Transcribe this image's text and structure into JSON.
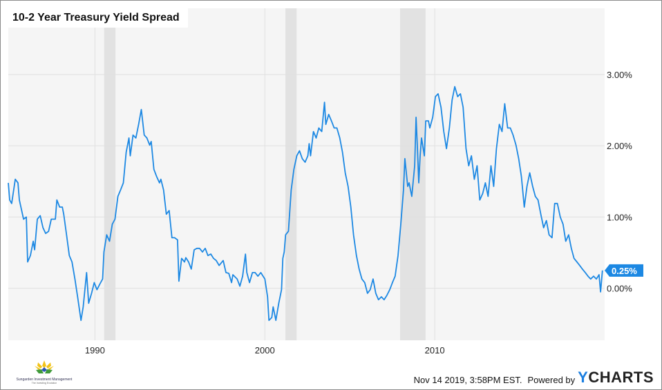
{
  "chart_data": {
    "type": "line",
    "title": "10-2 Year Treasury Yield Spread",
    "xlabel": "",
    "ylabel": "",
    "xlim": [
      1984.9,
      2020.0
    ],
    "ylim": [
      -0.73,
      3.93
    ],
    "x_ticks": [
      {
        "value": 1990,
        "label": "1990"
      },
      {
        "value": 2000,
        "label": "2000"
      },
      {
        "value": 2010,
        "label": "2010"
      }
    ],
    "y_ticks": [
      {
        "value": 0,
        "label": "0.00%"
      },
      {
        "value": 1,
        "label": "1.00%"
      },
      {
        "value": 2,
        "label": "2.00%"
      },
      {
        "value": 3,
        "label": "3.00%"
      }
    ],
    "grid": true,
    "line_color": "#1c88e3",
    "shaded_bands_color": "#e2e2e2",
    "shaded_bands": [
      [
        1990.54,
        1991.21
      ],
      [
        2001.21,
        2001.87
      ],
      [
        2007.96,
        2009.46
      ]
    ],
    "last_value_label": "0.25%",
    "series": [
      {
        "x": [
          1984.9,
          1984.98,
          1985.1,
          1985.31,
          1985.47,
          1985.55,
          1985.8,
          1985.96,
          1986.04,
          1986.2,
          1986.37,
          1986.45,
          1986.61,
          1986.78,
          1986.94,
          1987.1,
          1987.27,
          1987.43,
          1987.67,
          1987.76,
          1987.92,
          1988.08,
          1988.16,
          1988.33,
          1988.49,
          1988.65,
          1988.82,
          1988.98,
          1989.18,
          1989.31,
          1989.51,
          1989.63,
          1989.8,
          1989.96,
          1990.12,
          1990.29,
          1990.45,
          1990.53,
          1990.69,
          1990.86,
          1991.02,
          1991.18,
          1991.35,
          1991.51,
          1991.67,
          1991.84,
          1992.0,
          1992.08,
          1992.24,
          1992.41,
          1992.57,
          1992.73,
          1992.9,
          1993.06,
          1993.22,
          1993.31,
          1993.47,
          1993.63,
          1993.8,
          1993.88,
          1994.04,
          1994.2,
          1994.37,
          1994.53,
          1994.69,
          1994.86,
          1994.94,
          1995.1,
          1995.27,
          1995.35,
          1995.51,
          1995.67,
          1995.84,
          1996.0,
          1996.16,
          1996.33,
          1996.49,
          1996.65,
          1996.82,
          1996.98,
          1997.14,
          1997.31,
          1997.55,
          1997.71,
          1997.88,
          1998.04,
          1998.12,
          1998.37,
          1998.53,
          1998.69,
          1998.86,
          1998.94,
          1999.1,
          1999.27,
          1999.43,
          1999.59,
          1999.76,
          2000.0,
          2000.16,
          2000.24,
          2000.41,
          2000.49,
          2000.65,
          2000.82,
          2000.98,
          2001.06,
          2001.14,
          2001.22,
          2001.39,
          2001.55,
          2001.71,
          2001.88,
          2002.04,
          2002.2,
          2002.37,
          2002.53,
          2002.61,
          2002.69,
          2002.86,
          2003.02,
          2003.18,
          2003.35,
          2003.51,
          2003.59,
          2003.76,
          2003.92,
          2004.08,
          2004.24,
          2004.41,
          2004.57,
          2004.73,
          2004.9,
          2005.06,
          2005.22,
          2005.39,
          2005.55,
          2005.71,
          2005.88,
          2006.04,
          2006.2,
          2006.37,
          2006.53,
          2006.69,
          2006.86,
          2007.02,
          2007.18,
          2007.35,
          2007.51,
          2007.67,
          2007.84,
          2008.0,
          2008.16,
          2008.24,
          2008.41,
          2008.49,
          2008.65,
          2008.82,
          2008.9,
          2008.98,
          2009.06,
          2009.14,
          2009.22,
          2009.39,
          2009.47,
          2009.63,
          2009.71,
          2009.88,
          2010.04,
          2010.2,
          2010.37,
          2010.53,
          2010.69,
          2010.86,
          2011.02,
          2011.18,
          2011.35,
          2011.51,
          2011.67,
          2011.84,
          2012.0,
          2012.16,
          2012.33,
          2012.49,
          2012.65,
          2012.82,
          2012.98,
          2013.14,
          2013.31,
          2013.47,
          2013.63,
          2013.8,
          2013.96,
          2014.12,
          2014.29,
          2014.45,
          2014.61,
          2014.78,
          2014.94,
          2015.1,
          2015.27,
          2015.43,
          2015.59,
          2015.76,
          2015.92,
          2016.08,
          2016.24,
          2016.41,
          2016.57,
          2016.73,
          2016.9,
          2017.06,
          2017.22,
          2017.39,
          2017.55,
          2017.71,
          2017.88,
          2018.04,
          2018.2,
          2018.37,
          2018.53,
          2018.69,
          2018.86,
          2019.02,
          2019.18,
          2019.35,
          2019.51,
          2019.67,
          2019.76,
          2019.87
        ],
        "y": [
          1.48,
          1.24,
          1.19,
          1.53,
          1.48,
          1.24,
          0.97,
          1.0,
          0.37,
          0.46,
          0.66,
          0.54,
          0.97,
          1.02,
          0.85,
          0.77,
          0.8,
          0.97,
          0.97,
          1.24,
          1.14,
          1.14,
          1.04,
          0.75,
          0.46,
          0.37,
          0.13,
          -0.12,
          -0.45,
          -0.26,
          0.22,
          -0.21,
          -0.07,
          0.08,
          -0.02,
          0.06,
          0.13,
          0.51,
          0.75,
          0.66,
          0.9,
          0.97,
          1.29,
          1.38,
          1.48,
          1.91,
          2.11,
          1.86,
          2.15,
          2.11,
          2.3,
          2.51,
          2.15,
          2.11,
          2.01,
          2.06,
          1.67,
          1.57,
          1.48,
          1.53,
          1.38,
          1.04,
          1.09,
          0.71,
          0.71,
          0.68,
          0.1,
          0.42,
          0.37,
          0.43,
          0.37,
          0.27,
          0.54,
          0.56,
          0.56,
          0.51,
          0.56,
          0.46,
          0.48,
          0.42,
          0.39,
          0.32,
          0.39,
          0.22,
          0.21,
          0.08,
          0.19,
          0.13,
          0.03,
          0.17,
          0.48,
          0.22,
          0.08,
          0.22,
          0.22,
          0.17,
          0.22,
          0.13,
          -0.12,
          -0.45,
          -0.41,
          -0.26,
          -0.45,
          -0.21,
          -0.02,
          0.42,
          0.51,
          0.75,
          0.8,
          1.38,
          1.67,
          1.86,
          1.93,
          1.82,
          1.77,
          1.86,
          2.03,
          1.86,
          2.2,
          2.11,
          2.25,
          2.2,
          2.61,
          2.3,
          2.44,
          2.35,
          2.25,
          2.25,
          2.11,
          1.91,
          1.62,
          1.43,
          1.14,
          0.75,
          0.46,
          0.27,
          0.13,
          0.08,
          -0.07,
          -0.02,
          0.13,
          -0.07,
          -0.16,
          -0.12,
          -0.16,
          -0.1,
          -0.02,
          0.08,
          0.17,
          0.46,
          0.9,
          1.38,
          1.82,
          1.43,
          1.48,
          1.29,
          1.72,
          2.4,
          1.96,
          1.48,
          1.86,
          2.11,
          1.86,
          2.35,
          2.35,
          2.25,
          2.4,
          2.69,
          2.73,
          2.54,
          2.2,
          1.96,
          2.25,
          2.64,
          2.83,
          2.69,
          2.73,
          2.54,
          1.96,
          1.72,
          1.86,
          1.53,
          1.72,
          1.24,
          1.33,
          1.48,
          1.29,
          1.72,
          1.43,
          1.96,
          2.3,
          2.2,
          2.59,
          2.25,
          2.25,
          2.15,
          2.01,
          1.82,
          1.57,
          1.14,
          1.43,
          1.62,
          1.43,
          1.29,
          1.24,
          1.04,
          0.85,
          0.95,
          0.75,
          0.71,
          1.19,
          1.19,
          1.0,
          0.9,
          0.66,
          0.75,
          0.56,
          0.42,
          0.37,
          0.32,
          0.27,
          0.22,
          0.17,
          0.13,
          0.17,
          0.13,
          0.19,
          -0.05,
          0.25
        ]
      }
    ]
  },
  "footer": {
    "timestamp": "Nov 14 2019, 3:58PM EST.",
    "powered_by": "Powered by",
    "brand_y": "Y",
    "brand_rest": "CHARTS"
  },
  "logo": {
    "name": "Sungarden Investment Management",
    "tagline": "The Investing Evolution"
  }
}
